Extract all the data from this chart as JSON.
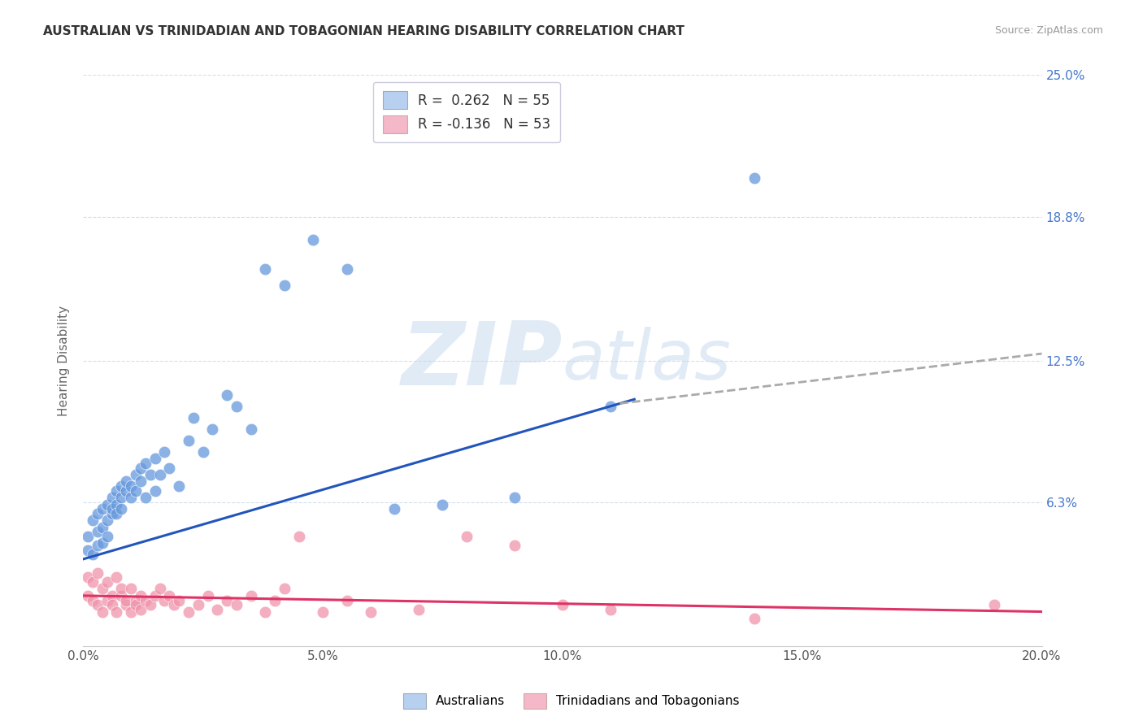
{
  "title": "AUSTRALIAN VS TRINIDADIAN AND TOBAGONIAN HEARING DISABILITY CORRELATION CHART",
  "source": "Source: ZipAtlas.com",
  "ylabel": "Hearing Disability",
  "xlim": [
    0.0,
    0.2
  ],
  "ylim": [
    0.0,
    0.25
  ],
  "ytick_labels": [
    "6.3%",
    "12.5%",
    "18.8%",
    "25.0%"
  ],
  "ytick_values": [
    0.063,
    0.125,
    0.188,
    0.25
  ],
  "xtick_values": [
    0.0,
    0.05,
    0.1,
    0.15,
    0.2
  ],
  "xtick_labels": [
    "0.0%",
    "5.0%",
    "10.0%",
    "15.0%",
    "20.0%"
  ],
  "watermark_zip": "ZIP",
  "watermark_atlas": "atlas",
  "legend_color1": "#b8d0f0",
  "legend_color2": "#f4b8c8",
  "scatter_color1": "#6699dd",
  "scatter_color2": "#f093aa",
  "line_color1": "#2255bb",
  "line_color2": "#dd3366",
  "line_color_ext": "#aaaaaa",
  "background_color": "#ffffff",
  "grid_color": "#ccddee",
  "aus_points_x": [
    0.001,
    0.001,
    0.002,
    0.002,
    0.003,
    0.003,
    0.003,
    0.004,
    0.004,
    0.004,
    0.005,
    0.005,
    0.005,
    0.006,
    0.006,
    0.006,
    0.007,
    0.007,
    0.007,
    0.008,
    0.008,
    0.008,
    0.009,
    0.009,
    0.01,
    0.01,
    0.011,
    0.011,
    0.012,
    0.012,
    0.013,
    0.013,
    0.014,
    0.015,
    0.015,
    0.016,
    0.017,
    0.018,
    0.02,
    0.022,
    0.023,
    0.025,
    0.027,
    0.03,
    0.032,
    0.035,
    0.038,
    0.042,
    0.048,
    0.055,
    0.065,
    0.075,
    0.09,
    0.11,
    0.14
  ],
  "aus_points_y": [
    0.042,
    0.048,
    0.04,
    0.055,
    0.044,
    0.058,
    0.05,
    0.045,
    0.06,
    0.052,
    0.048,
    0.062,
    0.055,
    0.058,
    0.065,
    0.06,
    0.062,
    0.068,
    0.058,
    0.065,
    0.07,
    0.06,
    0.068,
    0.072,
    0.065,
    0.07,
    0.068,
    0.075,
    0.072,
    0.078,
    0.065,
    0.08,
    0.075,
    0.068,
    0.082,
    0.075,
    0.085,
    0.078,
    0.07,
    0.09,
    0.1,
    0.085,
    0.095,
    0.11,
    0.105,
    0.095,
    0.165,
    0.158,
    0.178,
    0.165,
    0.06,
    0.062,
    0.065,
    0.105,
    0.205
  ],
  "tri_points_x": [
    0.001,
    0.001,
    0.002,
    0.002,
    0.003,
    0.003,
    0.004,
    0.004,
    0.005,
    0.005,
    0.006,
    0.006,
    0.007,
    0.007,
    0.008,
    0.008,
    0.009,
    0.009,
    0.01,
    0.01,
    0.011,
    0.011,
    0.012,
    0.012,
    0.013,
    0.014,
    0.015,
    0.016,
    0.017,
    0.018,
    0.019,
    0.02,
    0.022,
    0.024,
    0.026,
    0.028,
    0.03,
    0.032,
    0.035,
    0.038,
    0.04,
    0.042,
    0.045,
    0.05,
    0.055,
    0.06,
    0.07,
    0.08,
    0.09,
    0.1,
    0.11,
    0.14,
    0.19
  ],
  "tri_points_y": [
    0.03,
    0.022,
    0.028,
    0.02,
    0.032,
    0.018,
    0.025,
    0.015,
    0.028,
    0.02,
    0.022,
    0.018,
    0.03,
    0.015,
    0.022,
    0.025,
    0.018,
    0.02,
    0.015,
    0.025,
    0.02,
    0.018,
    0.022,
    0.016,
    0.02,
    0.018,
    0.022,
    0.025,
    0.02,
    0.022,
    0.018,
    0.02,
    0.015,
    0.018,
    0.022,
    0.016,
    0.02,
    0.018,
    0.022,
    0.015,
    0.02,
    0.025,
    0.048,
    0.015,
    0.02,
    0.015,
    0.016,
    0.048,
    0.044,
    0.018,
    0.016,
    0.012,
    0.018
  ],
  "aus_line_x0": 0.0,
  "aus_line_y0": 0.038,
  "aus_line_x1": 0.115,
  "aus_line_y1": 0.108,
  "aus_line_solid_end": 0.115,
  "aus_line_dash_start": 0.112,
  "aus_line_dash_end": 0.2,
  "aus_line_dash_y_end": 0.128,
  "tri_line_x0": 0.0,
  "tri_line_y0": 0.022,
  "tri_line_x1": 0.2,
  "tri_line_y1": 0.015
}
